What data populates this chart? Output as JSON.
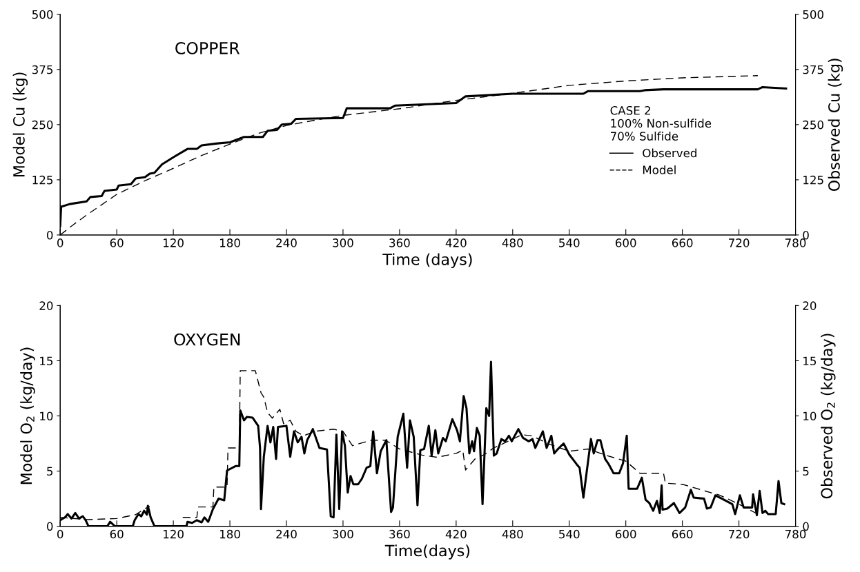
{
  "chart_data": [
    {
      "type": "line",
      "title": "COPPER",
      "xlabel": "Time (days)",
      "ylabel": "Model Cu (kg)",
      "y2label": "Observed Cu (kg)",
      "legend_title": "CASE 2\n100% Non-sulfide\n70% Sulfide",
      "legend": "center right",
      "grid": false,
      "xlim": [
        0,
        780
      ],
      "xticks": [
        0,
        60,
        120,
        180,
        240,
        300,
        360,
        420,
        480,
        540,
        600,
        660,
        720,
        780
      ],
      "ylim": [
        0,
        500
      ],
      "yticks": [
        0,
        125,
        250,
        375,
        500
      ],
      "y2lim": [
        0,
        500
      ],
      "y2ticks": [
        0,
        125,
        250,
        375,
        500
      ],
      "series": [
        {
          "name": "Observed",
          "color": "#000000",
          "line_style": "solid",
          "x": [
            0,
            1,
            10,
            28,
            32,
            44,
            47,
            60,
            62,
            75,
            80,
            90,
            95,
            100,
            108,
            120,
            135,
            145,
            150,
            165,
            180,
            195,
            215,
            220,
            230,
            235,
            245,
            250,
            300,
            304,
            350,
            355,
            420,
            430,
            480,
            555,
            560,
            615,
            620,
            640,
            740,
            745,
            770
          ],
          "values": [
            20,
            64,
            70,
            76,
            86,
            88,
            100,
            103,
            112,
            115,
            128,
            131,
            139,
            141,
            160,
            176,
            195,
            195,
            203,
            207,
            210,
            222,
            222,
            236,
            238,
            250,
            252,
            263,
            265,
            287,
            287,
            293,
            299,
            314,
            320,
            320,
            326,
            326,
            328,
            330,
            330,
            335,
            332
          ]
        },
        {
          "name": "Model",
          "color": "#000000",
          "line_style": "dashed",
          "x": [
            0,
            15,
            30,
            60,
            90,
            120,
            150,
            180,
            210,
            240,
            270,
            300,
            360,
            420,
            480,
            540,
            600,
            660,
            740
          ],
          "values": [
            0,
            25,
            48,
            92,
            123,
            151,
            180,
            206,
            230,
            248,
            260,
            271,
            286,
            305,
            321,
            339,
            349,
            356,
            361
          ]
        }
      ]
    },
    {
      "type": "line",
      "title": "OXYGEN",
      "xlabel": "Time(days)",
      "ylabel": "Model O$_{2}$ (kg/day)",
      "y2label": "Observed O$_{2}$ (kg/day)",
      "grid": false,
      "xlim": [
        0,
        780
      ],
      "xticks": [
        0,
        60,
        120,
        180,
        240,
        300,
        360,
        420,
        480,
        540,
        600,
        660,
        720,
        780
      ],
      "ylim": [
        0,
        20
      ],
      "yticks": [
        0,
        5,
        10,
        15,
        20
      ],
      "y2lim": [
        0,
        20
      ],
      "y2ticks": [
        0,
        5,
        10,
        15,
        20
      ],
      "series": [
        {
          "color": "#000000",
          "line_style": "solid",
          "x": [
            0,
            5,
            8,
            12,
            16,
            20,
            24,
            27,
            30,
            50,
            53,
            58,
            77,
            79,
            83,
            86,
            89,
            92,
            93,
            96,
            100,
            134,
            135,
            140,
            145,
            150,
            153,
            157,
            162,
            168,
            174,
            177,
            186,
            190,
            191,
            195,
            198,
            204,
            210,
            212,
            213,
            216,
            220,
            223,
            226,
            229,
            231,
            240,
            244,
            248,
            252,
            256,
            259,
            262,
            268,
            275,
            283,
            287,
            290,
            293,
            296,
            299,
            302,
            305,
            308,
            311,
            316,
            320,
            325,
            329,
            332,
            336,
            340,
            346,
            351,
            353,
            358,
            364,
            368,
            371,
            375,
            379,
            382,
            386,
            391,
            394,
            398,
            401,
            406,
            409,
            416,
            421,
            424,
            428,
            431,
            434,
            437,
            439,
            442,
            445,
            448,
            452,
            455,
            457,
            460,
            463,
            468,
            472,
            476,
            479,
            486,
            491,
            497,
            501,
            504,
            512,
            516,
            521,
            524,
            528,
            534,
            540,
            548,
            551,
            555,
            563,
            566,
            570,
            573,
            578,
            582,
            587,
            593,
            597,
            601,
            603,
            612,
            617,
            621,
            625,
            629,
            633,
            636,
            638,
            639,
            644,
            651,
            657,
            663,
            669,
            672,
            683,
            686,
            690,
            695,
            702,
            713,
            716,
            721,
            725,
            734,
            735,
            739,
            742,
            745,
            748,
            751,
            759,
            762,
            765,
            768
          ],
          "values": [
            0.55,
            0.8,
            1.1,
            0.7,
            1.2,
            0.7,
            0.9,
            0.55,
            0,
            0,
            0.4,
            0,
            0,
            0.55,
            1.1,
            0.9,
            1.4,
            1.05,
            1.85,
            0.8,
            0,
            0,
            0.4,
            0.3,
            0.55,
            0.35,
            0.8,
            0.4,
            1.55,
            2.5,
            2.35,
            5.05,
            5.45,
            5.45,
            10.5,
            9.6,
            9.9,
            9.85,
            9.1,
            7.1,
            1.55,
            6.3,
            9.1,
            7.6,
            9.0,
            6.1,
            9.0,
            9.1,
            6.3,
            8.6,
            7.6,
            8.1,
            6.6,
            7.8,
            8.8,
            7.1,
            6.95,
            0.9,
            0.8,
            8.3,
            1.55,
            8.6,
            7.3,
            3.05,
            4.55,
            3.8,
            3.8,
            4.3,
            5.3,
            5.45,
            8.6,
            4.8,
            6.8,
            7.8,
            1.3,
            1.7,
            8.1,
            10.2,
            5.3,
            9.6,
            8.1,
            1.9,
            6.9,
            7.0,
            9.1,
            6.4,
            8.7,
            6.6,
            8.0,
            7.7,
            9.7,
            8.7,
            7.7,
            11.8,
            10.7,
            6.6,
            7.7,
            6.8,
            8.9,
            8.2,
            2.0,
            10.7,
            10.0,
            14.9,
            6.4,
            6.6,
            7.9,
            7.7,
            8.2,
            7.7,
            8.8,
            8.0,
            7.7,
            7.9,
            7.1,
            8.6,
            7.1,
            8.2,
            6.6,
            7.0,
            7.5,
            6.5,
            5.6,
            5.3,
            2.6,
            7.9,
            6.6,
            7.8,
            7.8,
            6.1,
            5.6,
            4.8,
            4.8,
            5.7,
            8.2,
            3.4,
            3.4,
            4.4,
            2.4,
            2.1,
            1.4,
            2.3,
            1.2,
            3.7,
            1.5,
            1.6,
            2.1,
            1.2,
            1.7,
            3.3,
            2.6,
            2.5,
            1.6,
            1.7,
            2.8,
            2.5,
            2.0,
            1.1,
            2.8,
            1.7,
            1.7,
            2.9,
            1.0,
            3.2,
            1.2,
            1.4,
            1.1,
            1.1,
            4.1,
            2.1,
            2.0
          ]
        },
        {
          "color": "#000000",
          "line_style": "dashed",
          "x": [
            0,
            30,
            60,
            80,
            90,
            95,
            100,
            130,
            145,
            146,
            162,
            163,
            177,
            178,
            190,
            191,
            207,
            213,
            216,
            220,
            225,
            233,
            237,
            244,
            250,
            258,
            270,
            290,
            300,
            310,
            330,
            345,
            360,
            384,
            400,
            420,
            427,
            430,
            440,
            450,
            460,
            480,
            490,
            500,
            520,
            540,
            560,
            580,
            600,
            615,
            640,
            642,
            660,
            680,
            700,
            720,
            740
          ],
          "values": [
            0.8,
            0.6,
            0.7,
            1.05,
            1.6,
            1.8,
            null,
            0.8,
            0.8,
            1.75,
            1.75,
            3.55,
            3.55,
            7.1,
            7.1,
            14.1,
            14.1,
            12.1,
            11.7,
            10.3,
            9.8,
            10.6,
            9.3,
            9.6,
            8.6,
            8.2,
            8.6,
            8.8,
            8.6,
            7.3,
            7.8,
            7.8,
            7.0,
            6.45,
            6.25,
            6.6,
            6.9,
            5.1,
            6.1,
            6.5,
            7.1,
            7.9,
            8.3,
            8.2,
            7.4,
            6.8,
            7.0,
            6.4,
            5.9,
            4.8,
            4.8,
            3.9,
            3.8,
            3.3,
            2.8,
            2.0,
            1.1
          ]
        }
      ]
    }
  ]
}
